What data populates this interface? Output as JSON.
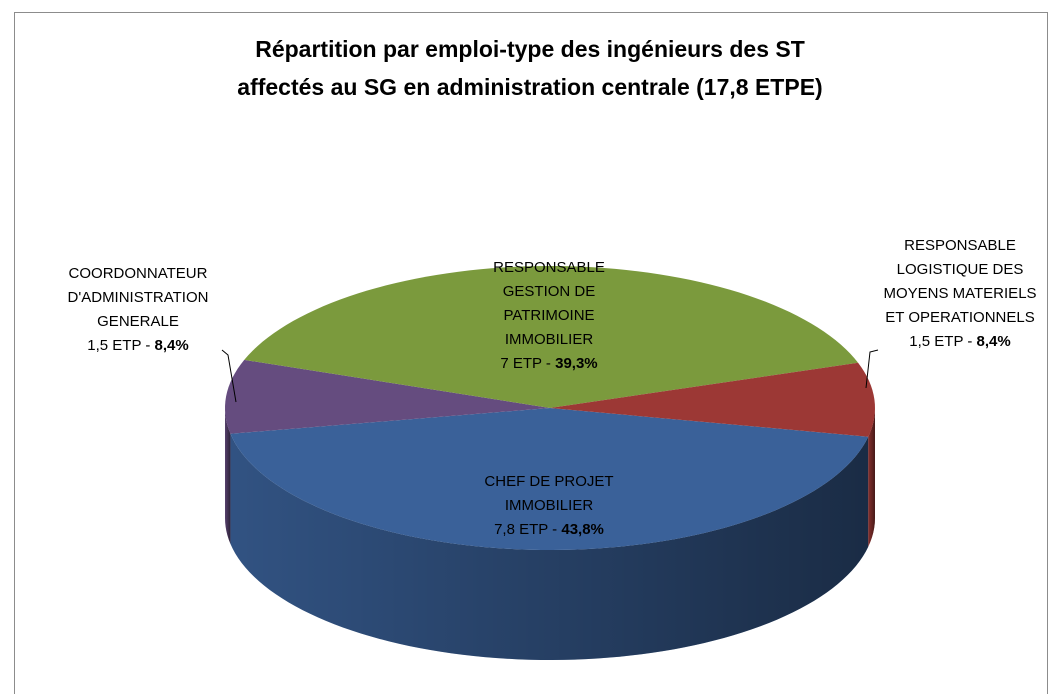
{
  "chart_data": {
    "type": "pie",
    "title": "Répartition par emploi-type des ingénieurs des ST\naffectés au SG en administration centrale (17,8 ETPE)",
    "categories": [
      "CHEF DE PROJET\nIMMOBILIER",
      "COORDONNATEUR\nD'ADMINISTRATION\nGENERALE",
      "RESPONSABLE\nGESTION DE\nPATRIMOINE\nIMMOBILIER",
      "RESPONSABLE\nLOGISTIQUE DES\nMOYENS MATERIELS\nET OPERATIONNELS"
    ],
    "values": [
      7.8,
      1.5,
      7,
      1.5
    ],
    "value_labels": [
      "7,8 ETP",
      "1,5 ETP",
      "7 ETP",
      "1,5 ETP"
    ],
    "separator": " - ",
    "percents": [
      43.8,
      8.4,
      39.3,
      8.4
    ],
    "percent_labels": [
      "43,8%",
      "8,4%",
      "39,3%",
      "8,4%"
    ],
    "colors": [
      "#3a6199",
      "#654c7f",
      "#7b9a3d",
      "#9c3835"
    ]
  }
}
